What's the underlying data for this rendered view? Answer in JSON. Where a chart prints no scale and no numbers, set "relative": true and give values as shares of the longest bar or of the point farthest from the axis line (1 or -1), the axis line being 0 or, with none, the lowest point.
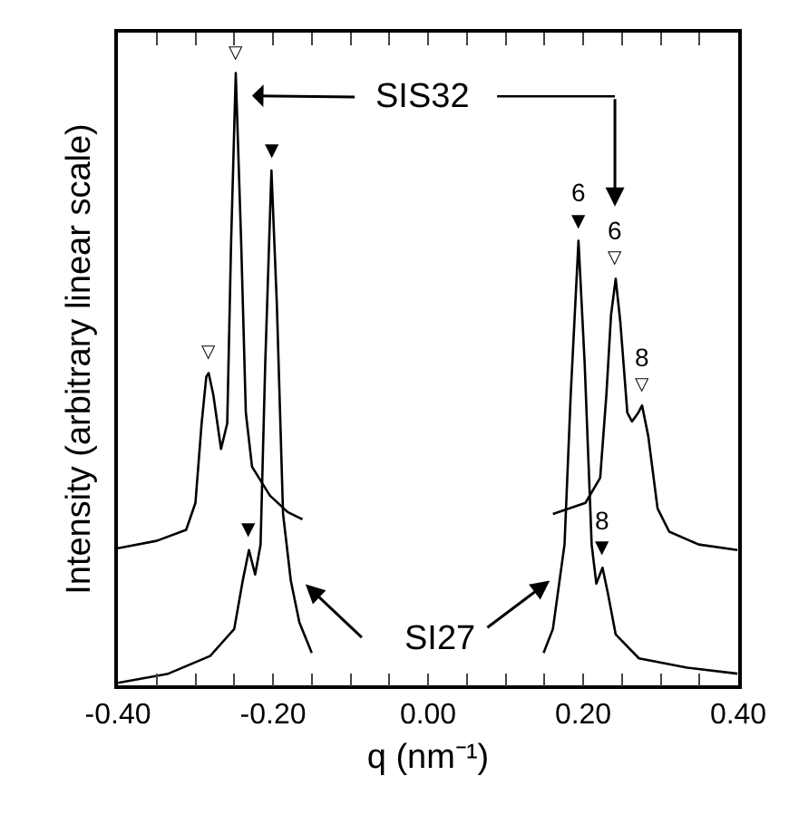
{
  "chart_data": {
    "type": "line",
    "relative": true,
    "xlabel": "q (nm⁻¹)",
    "ylabel": "Intensity (arbitrary linear scale)",
    "xlim": [
      -0.4,
      0.4
    ],
    "xticks": [
      {
        "value": -0.4,
        "label": "-0.40"
      },
      {
        "value": -0.35,
        "label": null
      },
      {
        "value": -0.3,
        "label": null
      },
      {
        "value": -0.25,
        "label": null
      },
      {
        "value": -0.2,
        "label": "-0.20"
      },
      {
        "value": -0.15,
        "label": null
      },
      {
        "value": -0.1,
        "label": null
      },
      {
        "value": -0.05,
        "label": null
      },
      {
        "value": 0,
        "label": "0.00"
      },
      {
        "value": 0.05,
        "label": null
      },
      {
        "value": 0.1,
        "label": null
      },
      {
        "value": 0.15,
        "label": null
      },
      {
        "value": 0.2,
        "label": "0.20"
      },
      {
        "value": 0.25,
        "label": null
      },
      {
        "value": 0.3,
        "label": null
      },
      {
        "value": 0.35,
        "label": null
      },
      {
        "value": 0.4,
        "label": "0.40"
      }
    ],
    "marker": "none",
    "line_style": "solid",
    "tick_labels": "x",
    "series": [
      {
        "color": "#000000",
        "x": [
          -0.4,
          -0.35,
          -0.312,
          -0.3,
          -0.292,
          -0.286,
          -0.283,
          -0.277,
          -0.267,
          -0.259,
          -0.254,
          -0.248,
          -0.241,
          -0.235,
          -0.227,
          -0.204,
          -0.181,
          -0.162,
          0,
          0.161,
          0.203,
          0.222,
          0.23,
          0.236,
          0.242,
          0.248,
          0.257,
          0.263,
          0.271,
          0.276,
          0.284,
          0.296,
          0.311,
          0.349,
          0.399
        ],
        "values": [
          0.224,
          0.236,
          0.254,
          0.298,
          0.428,
          0.504,
          0.51,
          0.475,
          0.386,
          0.428,
          0.723,
          1.0,
          0.723,
          0.445,
          0.357,
          0.31,
          0.283,
          0.271,
          null,
          0.28,
          0.298,
          0.339,
          0.475,
          0.605,
          0.664,
          0.593,
          0.445,
          0.431,
          0.445,
          0.457,
          0.407,
          0.289,
          0.251,
          0.23,
          0.221
        ]
      },
      {
        "color": "#000000",
        "x": [
          -0.4,
          -0.335,
          -0.281,
          -0.25,
          -0.239,
          -0.231,
          -0.223,
          -0.216,
          -0.21,
          -0.202,
          -0.195,
          -0.187,
          -0.177,
          -0.166,
          -0.15,
          0,
          0.149,
          0.161,
          0.176,
          0.184,
          0.194,
          0.202,
          0.211,
          0.217,
          0.225,
          0.232,
          0.242,
          0.272,
          0.334,
          0.399
        ],
        "values": [
          0.004,
          0.019,
          0.048,
          0.092,
          0.171,
          0.221,
          0.181,
          0.23,
          0.525,
          0.841,
          0.622,
          0.28,
          0.171,
          0.103,
          0.053,
          null,
          0.053,
          0.092,
          0.23,
          0.475,
          0.726,
          0.525,
          0.23,
          0.166,
          0.192,
          0.15,
          0.083,
          0.044,
          0.029,
          0.019
        ]
      }
    ],
    "annotations": [
      "▽",
      "▽",
      "▼",
      "▼",
      "6",
      "▼",
      "6",
      "▽",
      "8",
      "▽",
      "8",
      "▼",
      "SIS32",
      "SI27"
    ]
  }
}
